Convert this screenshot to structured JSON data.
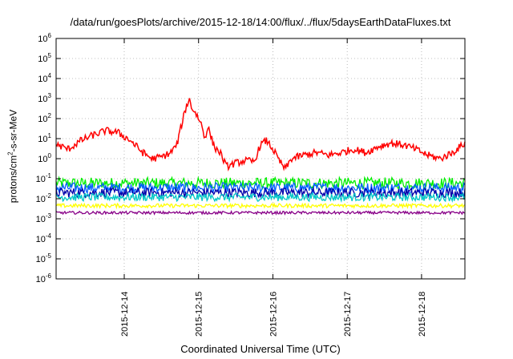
{
  "chart_data": {
    "type": "line",
    "title": "/data/run/goesPlots/archive/2015-12-18/14:00/flux/../flux/5daysEarthDataFluxes.txt",
    "xlabel": "Coordinated Universal Time (UTC)",
    "ylabel": {
      "prefix": "protons/cm",
      "sup": "2",
      "suffix": "-s-sr-MeV"
    },
    "yscale": "log",
    "ylim": [
      1e-06,
      1000000.0
    ],
    "yticks": [
      {
        "exp": "-6",
        "value": 1e-06
      },
      {
        "exp": "-5",
        "value": 1e-05
      },
      {
        "exp": "-4",
        "value": 0.0001
      },
      {
        "exp": "-3",
        "value": 0.001
      },
      {
        "exp": "-2",
        "value": 0.01
      },
      {
        "exp": "-1",
        "value": 0.1
      },
      {
        "exp": "0",
        "value": 1
      },
      {
        "exp": "1",
        "value": 10
      },
      {
        "exp": "2",
        "value": 100
      },
      {
        "exp": "3",
        "value": 1000
      },
      {
        "exp": "4",
        "value": 10000
      },
      {
        "exp": "5",
        "value": 100000
      },
      {
        "exp": "6",
        "value": 1000000
      }
    ],
    "xlim": [
      "2015-12-13T02:00",
      "2015-12-18T14:00"
    ],
    "xticks": [
      {
        "label": "2015-12-14",
        "value": "2015-12-14T00:00"
      },
      {
        "label": "2015-12-15",
        "value": "2015-12-15T00:00"
      },
      {
        "label": "2015-12-16",
        "value": "2015-12-16T00:00"
      },
      {
        "label": "2015-12-17",
        "value": "2015-12-17T00:00"
      },
      {
        "label": "2015-12-18",
        "value": "2015-12-18T00:00"
      }
    ],
    "grid": true,
    "series": [
      {
        "color": "#ff0000",
        "noise": 0.18,
        "points": [
          [
            "2015-12-13T02:00",
            5
          ],
          [
            "2015-12-13T06:00",
            3
          ],
          [
            "2015-12-13T10:00",
            8
          ],
          [
            "2015-12-13T14:00",
            15
          ],
          [
            "2015-12-13T18:00",
            25
          ],
          [
            "2015-12-13T22:00",
            20
          ],
          [
            "2015-12-14T02:00",
            8
          ],
          [
            "2015-12-14T06:00",
            2
          ],
          [
            "2015-12-14T09:00",
            1
          ],
          [
            "2015-12-14T12:00",
            1.2
          ],
          [
            "2015-12-14T15:00",
            2
          ],
          [
            "2015-12-14T17:00",
            5
          ],
          [
            "2015-12-14T19:00",
            100
          ],
          [
            "2015-12-14T20:00",
            400
          ],
          [
            "2015-12-14T21:00",
            900
          ],
          [
            "2015-12-14T22:00",
            300
          ],
          [
            "2015-12-14T23:00",
            200
          ],
          [
            "2015-12-15T01:00",
            50
          ],
          [
            "2015-12-15T02:00",
            10
          ],
          [
            "2015-12-15T03:00",
            40
          ],
          [
            "2015-12-15T05:00",
            4
          ],
          [
            "2015-12-15T07:00",
            2
          ],
          [
            "2015-12-15T09:00",
            0.4
          ],
          [
            "2015-12-15T12:00",
            0.6
          ],
          [
            "2015-12-15T15:00",
            0.8
          ],
          [
            "2015-12-15T18:00",
            0.7
          ],
          [
            "2015-12-15T20:00",
            5
          ],
          [
            "2015-12-15T22:00",
            8
          ],
          [
            "2015-12-16T00:00",
            3
          ],
          [
            "2015-12-16T02:00",
            0.8
          ],
          [
            "2015-12-16T04:00",
            0.3
          ],
          [
            "2015-12-16T06:00",
            1
          ],
          [
            "2015-12-16T10:00",
            1.5
          ],
          [
            "2015-12-16T14:00",
            2
          ],
          [
            "2015-12-16T18:00",
            1.5
          ],
          [
            "2015-12-16T22:00",
            2
          ],
          [
            "2015-12-17T02:00",
            3
          ],
          [
            "2015-12-17T06:00",
            2
          ],
          [
            "2015-12-17T10:00",
            4
          ],
          [
            "2015-12-17T14:00",
            6
          ],
          [
            "2015-12-17T18:00",
            5
          ],
          [
            "2015-12-17T22:00",
            3
          ],
          [
            "2015-12-18T02:00",
            1.5
          ],
          [
            "2015-12-18T06:00",
            1
          ],
          [
            "2015-12-18T10:00",
            2
          ],
          [
            "2015-12-18T14:00",
            6
          ]
        ]
      },
      {
        "color": "#00ee00",
        "noise": 0.28,
        "points": [
          [
            "2015-12-13T02:00",
            0.06
          ],
          [
            "2015-12-18T14:00",
            0.06
          ]
        ]
      },
      {
        "color": "#00c8c8",
        "noise": 0.2,
        "points": [
          [
            "2015-12-13T02:00",
            0.012
          ],
          [
            "2015-12-18T14:00",
            0.012
          ]
        ]
      },
      {
        "color": "#0060ff",
        "noise": 0.26,
        "points": [
          [
            "2015-12-13T02:00",
            0.035
          ],
          [
            "2015-12-18T14:00",
            0.035
          ]
        ]
      },
      {
        "color": "#0000aa",
        "noise": 0.24,
        "points": [
          [
            "2015-12-13T02:00",
            0.02
          ],
          [
            "2015-12-18T14:00",
            0.02
          ]
        ]
      },
      {
        "color": "#ffff00",
        "noise": 0.1,
        "points": [
          [
            "2015-12-13T02:00",
            0.0045
          ],
          [
            "2015-12-18T14:00",
            0.0045
          ]
        ]
      },
      {
        "color": "#880088",
        "noise": 0.07,
        "points": [
          [
            "2015-12-13T02:00",
            0.002
          ],
          [
            "2015-12-18T14:00",
            0.002
          ]
        ]
      }
    ]
  }
}
